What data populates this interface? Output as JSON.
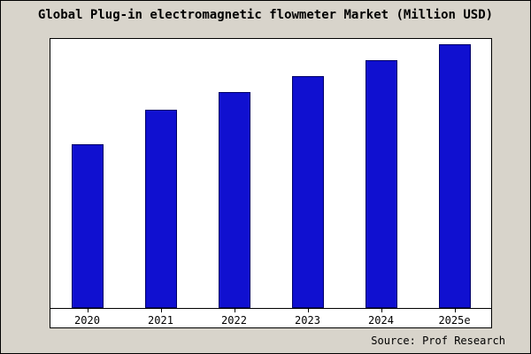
{
  "chart_data": {
    "type": "bar",
    "title": "Global Plug-in electromagnetic flowmeter Market (Million USD)",
    "categories": [
      "2020",
      "2021",
      "2022",
      "2023",
      "2024",
      "2025e"
    ],
    "values": [
      62,
      75,
      82,
      88,
      94,
      100
    ],
    "xlabel": "",
    "ylabel": "",
    "ylim": [
      0,
      102
    ],
    "grid": false,
    "legend": false,
    "bar_color": "#1010d0",
    "bar_border_color": "#000066"
  },
  "source": "Source: Prof Research",
  "colors": {
    "background": "#d8d4cb",
    "plot_background": "#ffffff",
    "border": "#000000"
  }
}
